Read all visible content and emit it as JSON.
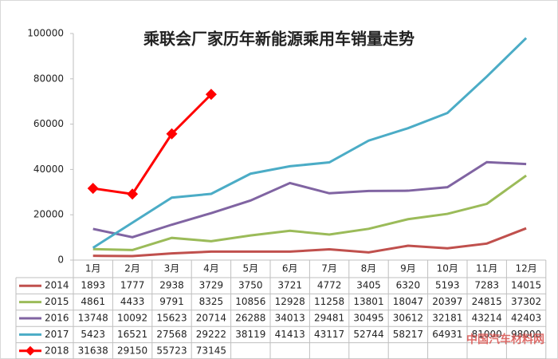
{
  "chart_data": {
    "type": "line",
    "title": "乘联会厂家历年新能源乘用车销量走势",
    "categories": [
      "1月",
      "2月",
      "3月",
      "4月",
      "5月",
      "6月",
      "7月",
      "8月",
      "9月",
      "10月",
      "11月",
      "12月"
    ],
    "ylim": [
      0,
      100000
    ],
    "yticks": [
      0,
      20000,
      40000,
      60000,
      80000,
      100000
    ],
    "grid": false,
    "series": [
      {
        "name": "2014",
        "color": "#c0504d",
        "marker": false,
        "values": [
          1893,
          1777,
          2938,
          3729,
          3750,
          3721,
          4772,
          3405,
          6320,
          5193,
          7283,
          14015
        ]
      },
      {
        "name": "2015",
        "color": "#9bbb59",
        "marker": false,
        "values": [
          4861,
          4433,
          9791,
          8325,
          10856,
          12928,
          11258,
          13801,
          18047,
          20397,
          24815,
          37302
        ]
      },
      {
        "name": "2016",
        "color": "#8064a2",
        "marker": false,
        "values": [
          13748,
          10092,
          15623,
          20714,
          26288,
          34013,
          29481,
          30495,
          30612,
          32181,
          43214,
          42403
        ]
      },
      {
        "name": "2017",
        "color": "#4bacc6",
        "marker": false,
        "values": [
          5423,
          16521,
          27568,
          29222,
          38119,
          41413,
          43117,
          52744,
          58217,
          64931,
          81000,
          98000
        ]
      },
      {
        "name": "2018",
        "color": "#ff0000",
        "marker": true,
        "values": [
          31638,
          29150,
          55723,
          73145,
          null,
          null,
          null,
          null,
          null,
          null,
          null,
          null
        ]
      }
    ],
    "watermark": "中国汽车材料网"
  }
}
